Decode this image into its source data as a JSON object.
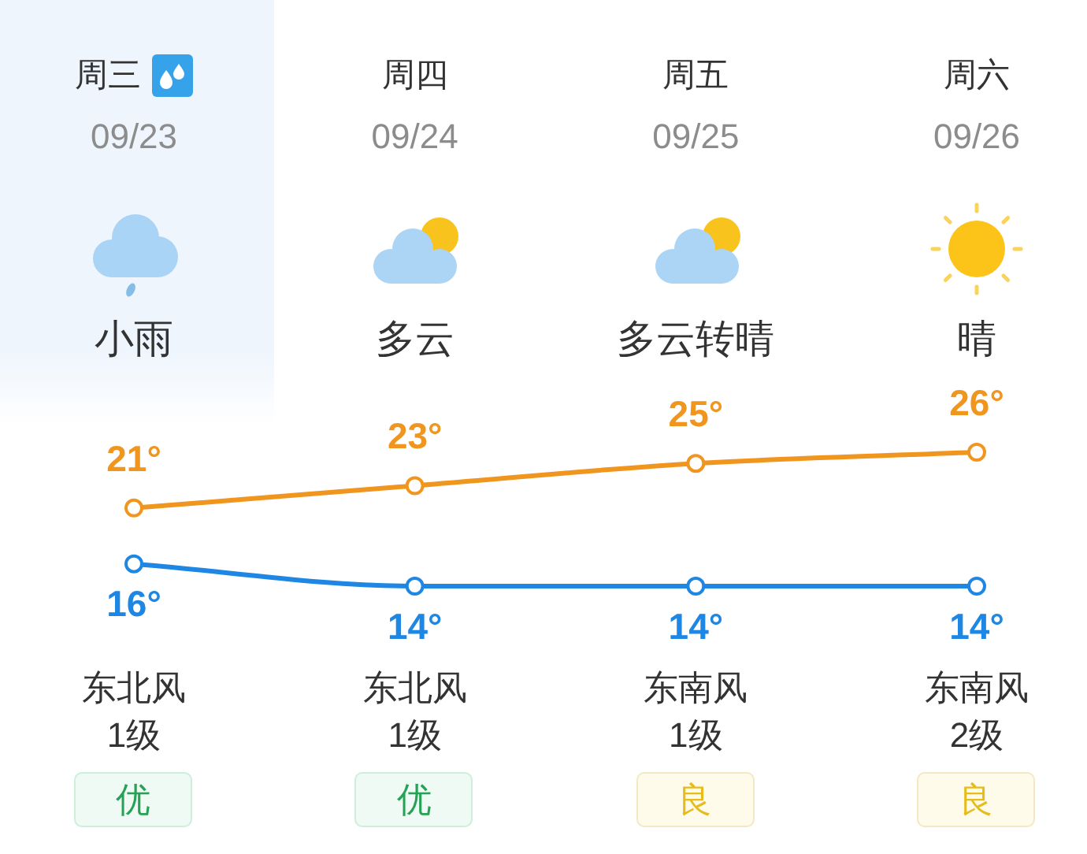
{
  "chart_data": {
    "type": "line",
    "categories": [
      "周三",
      "周四",
      "周五",
      "周六"
    ],
    "series": [
      {
        "color": "#f0961e",
        "values": [
          21,
          23,
          25,
          26
        ],
        "value_labels": [
          "21°",
          "23°",
          "25°",
          "26°"
        ]
      },
      {
        "color": "#1e86e3",
        "values": [
          16,
          14,
          14,
          14
        ],
        "value_labels": [
          "16°",
          "14°",
          "14°",
          "14°"
        ]
      }
    ],
    "marker": "circle",
    "line_style": "solid",
    "tick_labels": "x",
    "annotations": [
      "09/23",
      "小雨",
      "东北风",
      "1级",
      "优",
      "09/24",
      "多云",
      "东北风",
      "1级",
      "优",
      "09/25",
      "多云转晴",
      "东南风",
      "1级",
      "良",
      "09/26",
      "晴",
      "东南风",
      "2级",
      "良"
    ]
  }
}
